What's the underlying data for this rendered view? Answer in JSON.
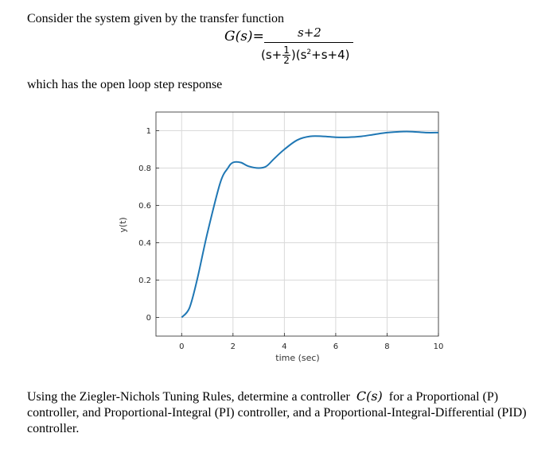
{
  "intro_text": "Consider the system given by the transfer function",
  "transfer_function": {
    "lhs": "G(s)=",
    "numerator": "s+2",
    "den_open": "(s+",
    "den_frac_num": "1",
    "den_frac_den": "2",
    "den_mid": ")(s",
    "den_exp": "2",
    "den_close": "+s+4)"
  },
  "after_text": "which has the open loop step response",
  "question": {
    "part1": "Using the Ziegler-Nichols Tuning Rules, determine a controller",
    "symbol": "C(s)",
    "part2": "for a Proportional (P) controller, and Proportional-Integral (PI) controller, and a Proportional-Integral-Differential (PID) controller."
  },
  "chart_data": {
    "type": "line",
    "xlabel": "time (sec)",
    "ylabel": "y(t)",
    "xlim": [
      -1,
      10
    ],
    "ylim": [
      -0.1,
      1.1
    ],
    "xticks": [
      0,
      2,
      4,
      6,
      8,
      10
    ],
    "xtick_labels": [
      "0",
      "2",
      "4",
      "6",
      "8",
      "10"
    ],
    "yticks": [
      0,
      0.2,
      0.4,
      0.6,
      0.8,
      1
    ],
    "ytick_labels": [
      "0",
      "0.2",
      "0.4",
      "0.6",
      "0.8",
      "1"
    ],
    "grid": true,
    "line_color": "#1f77b4",
    "series": [
      {
        "x": [
          0,
          0.3,
          0.6,
          1.0,
          1.5,
          1.8,
          2.0,
          2.3,
          2.6,
          3.0,
          3.3,
          3.6,
          4.0,
          4.5,
          5.0,
          5.5,
          6.0,
          6.5,
          7.0,
          7.5,
          8.0,
          8.5,
          9.0,
          9.5,
          10.0
        ],
        "y": [
          0,
          0.05,
          0.2,
          0.45,
          0.72,
          0.8,
          0.83,
          0.83,
          0.81,
          0.8,
          0.81,
          0.85,
          0.9,
          0.95,
          0.97,
          0.97,
          0.965,
          0.965,
          0.97,
          0.98,
          0.99,
          0.995,
          0.995,
          0.99,
          0.99
        ]
      }
    ]
  }
}
